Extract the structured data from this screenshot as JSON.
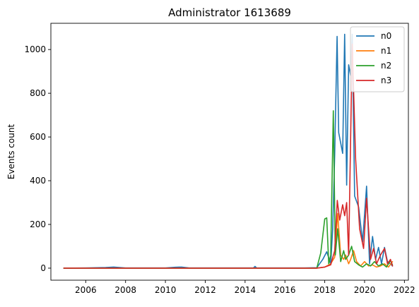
{
  "chart_data": {
    "type": "line",
    "title": "Administrator 1613689",
    "xlabel": "",
    "ylabel": "Events count",
    "xlim": [
      2004.25,
      2022.2
    ],
    "ylim": [
      -55,
      1120
    ],
    "xticks": [
      2006,
      2008,
      2010,
      2012,
      2014,
      2016,
      2018,
      2020,
      2022
    ],
    "yticks": [
      0,
      200,
      400,
      600,
      800,
      1000
    ],
    "grid": false,
    "legend_position": "upper right",
    "series": [
      {
        "name": "n0",
        "color": "#1f77b4",
        "points": [
          [
            2004.9,
            0
          ],
          [
            2006.0,
            1
          ],
          [
            2007.0,
            3
          ],
          [
            2007.4,
            5
          ],
          [
            2008.0,
            1
          ],
          [
            2009.0,
            1
          ],
          [
            2010.0,
            1
          ],
          [
            2010.5,
            4
          ],
          [
            2010.8,
            5
          ],
          [
            2011.2,
            1
          ],
          [
            2012.0,
            1
          ],
          [
            2013.0,
            1
          ],
          [
            2014.0,
            1
          ],
          [
            2014.42,
            1
          ],
          [
            2014.5,
            8
          ],
          [
            2014.58,
            1
          ],
          [
            2015.0,
            1
          ],
          [
            2016.0,
            1
          ],
          [
            2017.0,
            1
          ],
          [
            2017.6,
            2
          ],
          [
            2017.9,
            40
          ],
          [
            2018.1,
            75
          ],
          [
            2018.3,
            20
          ],
          [
            2018.4,
            180
          ],
          [
            2018.5,
            520
          ],
          [
            2018.62,
            1060
          ],
          [
            2018.7,
            620
          ],
          [
            2018.9,
            525
          ],
          [
            2019.0,
            1070
          ],
          [
            2019.1,
            380
          ],
          [
            2019.2,
            930
          ],
          [
            2019.3,
            880
          ],
          [
            2019.38,
            1070
          ],
          [
            2019.5,
            330
          ],
          [
            2019.7,
            280
          ],
          [
            2019.9,
            120
          ],
          [
            2020.1,
            375
          ],
          [
            2020.25,
            20
          ],
          [
            2020.4,
            145
          ],
          [
            2020.55,
            40
          ],
          [
            2020.7,
            95
          ],
          [
            2020.85,
            20
          ],
          [
            2021.0,
            95
          ],
          [
            2021.15,
            30
          ],
          [
            2021.3,
            20
          ],
          [
            2021.4,
            10
          ]
        ]
      },
      {
        "name": "n1",
        "color": "#ff7f0e",
        "points": [
          [
            2004.9,
            0
          ],
          [
            2008.0,
            0
          ],
          [
            2012.0,
            0
          ],
          [
            2016.0,
            0
          ],
          [
            2017.6,
            0
          ],
          [
            2018.0,
            5
          ],
          [
            2018.3,
            20
          ],
          [
            2018.5,
            50
          ],
          [
            2018.65,
            250
          ],
          [
            2018.8,
            60
          ],
          [
            2018.95,
            40
          ],
          [
            2019.05,
            60
          ],
          [
            2019.2,
            20
          ],
          [
            2019.3,
            40
          ],
          [
            2019.45,
            80
          ],
          [
            2019.6,
            30
          ],
          [
            2019.8,
            10
          ],
          [
            2020.0,
            30
          ],
          [
            2020.2,
            10
          ],
          [
            2020.4,
            15
          ],
          [
            2020.6,
            5
          ],
          [
            2020.8,
            10
          ],
          [
            2021.0,
            20
          ],
          [
            2021.2,
            5
          ],
          [
            2021.4,
            30
          ]
        ]
      },
      {
        "name": "n2",
        "color": "#2ca02c",
        "points": [
          [
            2004.9,
            0
          ],
          [
            2008.0,
            0
          ],
          [
            2012.0,
            0
          ],
          [
            2016.0,
            0
          ],
          [
            2017.6,
            0
          ],
          [
            2017.8,
            70
          ],
          [
            2018.0,
            225
          ],
          [
            2018.1,
            230
          ],
          [
            2018.2,
            20
          ],
          [
            2018.3,
            60
          ],
          [
            2018.43,
            720
          ],
          [
            2018.53,
            60
          ],
          [
            2018.65,
            180
          ],
          [
            2018.8,
            30
          ],
          [
            2018.95,
            80
          ],
          [
            2019.05,
            40
          ],
          [
            2019.2,
            60
          ],
          [
            2019.35,
            100
          ],
          [
            2019.5,
            30
          ],
          [
            2019.7,
            15
          ],
          [
            2019.9,
            5
          ],
          [
            2020.1,
            20
          ],
          [
            2020.3,
            10
          ],
          [
            2020.5,
            30
          ],
          [
            2020.7,
            10
          ],
          [
            2020.9,
            20
          ],
          [
            2021.1,
            5
          ],
          [
            2021.3,
            35
          ],
          [
            2021.4,
            15
          ]
        ]
      },
      {
        "name": "n3",
        "color": "#d62728",
        "points": [
          [
            2004.9,
            0
          ],
          [
            2008.0,
            0
          ],
          [
            2012.0,
            0
          ],
          [
            2016.0,
            0
          ],
          [
            2017.6,
            0
          ],
          [
            2018.0,
            5
          ],
          [
            2018.3,
            15
          ],
          [
            2018.5,
            80
          ],
          [
            2018.63,
            310
          ],
          [
            2018.75,
            220
          ],
          [
            2018.9,
            290
          ],
          [
            2019.0,
            240
          ],
          [
            2019.1,
            300
          ],
          [
            2019.2,
            60
          ],
          [
            2019.38,
            1025
          ],
          [
            2019.55,
            500
          ],
          [
            2019.75,
            180
          ],
          [
            2019.95,
            90
          ],
          [
            2020.1,
            320
          ],
          [
            2020.3,
            40
          ],
          [
            2020.45,
            90
          ],
          [
            2020.6,
            20
          ],
          [
            2020.8,
            60
          ],
          [
            2021.0,
            90
          ],
          [
            2021.15,
            20
          ],
          [
            2021.3,
            40
          ],
          [
            2021.4,
            10
          ]
        ]
      }
    ]
  }
}
